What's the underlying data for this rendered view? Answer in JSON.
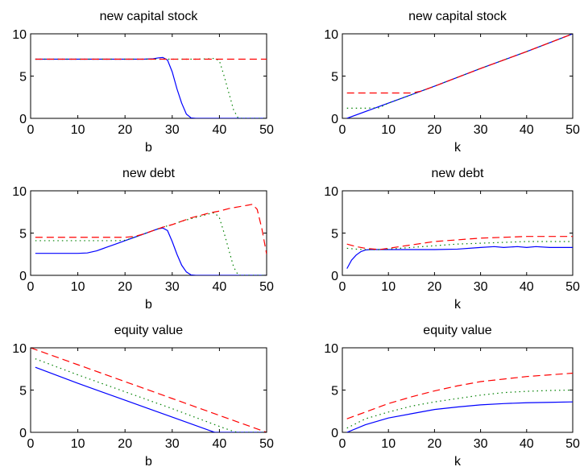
{
  "chart_data": [
    {
      "type": "line",
      "title": "new capital stock",
      "xlabel": "b",
      "ylabel": "",
      "xlim": [
        0,
        50
      ],
      "ylim": [
        0,
        10
      ],
      "xticks": [
        0,
        10,
        20,
        30,
        40,
        50
      ],
      "yticks": [
        0,
        5,
        10
      ],
      "series": [
        {
          "color": "#0000ff",
          "style": "solid",
          "x": [
            1,
            5,
            10,
            15,
            20,
            24,
            26,
            27,
            28,
            29,
            30,
            31,
            32,
            33,
            34,
            35,
            40,
            50
          ],
          "y": [
            7.0,
            7.0,
            7.0,
            7.0,
            7.0,
            7.0,
            7.05,
            7.15,
            7.2,
            6.9,
            5.5,
            3.5,
            1.8,
            0.5,
            0.05,
            0,
            0,
            0
          ]
        },
        {
          "color": "#008000",
          "style": "dotted",
          "x": [
            1,
            10,
            20,
            30,
            35,
            38,
            39,
            40,
            41,
            42,
            43,
            44,
            45,
            50
          ],
          "y": [
            7.0,
            7.0,
            7.0,
            7.0,
            7.0,
            7.05,
            7.1,
            6.8,
            5.0,
            3.0,
            1.0,
            0,
            0,
            0
          ]
        },
        {
          "color": "#ff0000",
          "style": "dashed",
          "x": [
            1,
            10,
            20,
            30,
            40,
            50
          ],
          "y": [
            7.0,
            7.0,
            7.0,
            7.0,
            7.0,
            7.0
          ]
        }
      ]
    },
    {
      "type": "line",
      "title": "new capital stock",
      "xlabel": "k",
      "ylabel": "",
      "xlim": [
        0,
        50
      ],
      "ylim": [
        0,
        10
      ],
      "xticks": [
        0,
        10,
        20,
        30,
        40,
        50
      ],
      "yticks": [
        0,
        5,
        10
      ],
      "series": [
        {
          "color": "#0000ff",
          "style": "solid",
          "x": [
            1,
            10,
            20,
            30,
            40,
            50
          ],
          "y": [
            0,
            1.8,
            3.8,
            5.9,
            7.9,
            10.0
          ]
        },
        {
          "color": "#008000",
          "style": "dotted",
          "x": [
            1,
            5,
            8,
            10,
            15,
            20,
            30,
            40,
            50
          ],
          "y": [
            1.2,
            1.2,
            1.25,
            1.8,
            2.8,
            3.8,
            5.9,
            7.9,
            10.0
          ]
        },
        {
          "color": "#ff0000",
          "style": "dashed",
          "x": [
            1,
            5,
            10,
            15,
            17,
            20,
            30,
            40,
            50
          ],
          "y": [
            3.0,
            3.0,
            3.0,
            3.0,
            3.2,
            3.8,
            5.9,
            7.9,
            10.0
          ]
        }
      ]
    },
    {
      "type": "line",
      "title": "new debt",
      "xlabel": "b",
      "ylabel": "",
      "xlim": [
        0,
        50
      ],
      "ylim": [
        0,
        10
      ],
      "xticks": [
        0,
        10,
        20,
        30,
        40,
        50
      ],
      "yticks": [
        0,
        5,
        10
      ],
      "series": [
        {
          "color": "#0000ff",
          "style": "solid",
          "x": [
            1,
            5,
            10,
            12,
            14,
            16,
            18,
            20,
            22,
            24,
            26,
            27,
            28,
            29,
            30,
            31,
            32,
            33,
            34,
            35,
            40,
            50
          ],
          "y": [
            2.6,
            2.6,
            2.6,
            2.65,
            2.9,
            3.3,
            3.7,
            4.1,
            4.5,
            4.9,
            5.3,
            5.5,
            5.6,
            5.3,
            4.0,
            2.5,
            1.2,
            0.4,
            0.05,
            0,
            0,
            0
          ]
        },
        {
          "color": "#008000",
          "style": "dotted",
          "x": [
            1,
            5,
            10,
            15,
            18,
            20,
            22,
            24,
            26,
            28,
            30,
            32,
            34,
            36,
            38,
            39,
            40,
            41,
            42,
            43,
            44,
            50
          ],
          "y": [
            4.1,
            4.1,
            4.1,
            4.1,
            4.1,
            4.15,
            4.5,
            4.9,
            5.3,
            5.7,
            6.0,
            6.4,
            6.7,
            7.0,
            7.3,
            7.4,
            6.8,
            5.0,
            3.0,
            1.0,
            0,
            0
          ]
        },
        {
          "color": "#ff0000",
          "style": "dashed",
          "x": [
            1,
            5,
            10,
            15,
            20,
            22,
            24,
            26,
            28,
            30,
            32,
            34,
            36,
            38,
            40,
            42,
            44,
            46,
            47,
            48,
            49,
            50
          ],
          "y": [
            4.5,
            4.5,
            4.5,
            4.5,
            4.5,
            4.6,
            4.9,
            5.3,
            5.7,
            6.0,
            6.4,
            6.8,
            7.1,
            7.4,
            7.6,
            7.9,
            8.1,
            8.3,
            8.4,
            7.8,
            5.5,
            2.5
          ]
        }
      ]
    },
    {
      "type": "line",
      "title": "new debt",
      "xlabel": "k",
      "ylabel": "",
      "xlim": [
        0,
        50
      ],
      "ylim": [
        0,
        10
      ],
      "xticks": [
        0,
        10,
        20,
        30,
        40,
        50
      ],
      "yticks": [
        0,
        5,
        10
      ],
      "series": [
        {
          "color": "#0000ff",
          "style": "solid",
          "x": [
            1,
            2,
            3,
            4,
            5,
            6,
            8,
            10,
            15,
            20,
            25,
            30,
            33,
            35,
            38,
            40,
            42,
            45,
            48,
            50
          ],
          "y": [
            0.8,
            1.8,
            2.4,
            2.8,
            3.0,
            3.05,
            3.05,
            3.05,
            3.05,
            3.05,
            3.1,
            3.3,
            3.4,
            3.3,
            3.4,
            3.3,
            3.4,
            3.3,
            3.3,
            3.3
          ]
        },
        {
          "color": "#008000",
          "style": "dotted",
          "x": [
            1,
            3,
            5,
            8,
            10,
            15,
            20,
            25,
            30,
            35,
            40,
            45,
            50
          ],
          "y": [
            3.2,
            3.1,
            3.05,
            3.05,
            3.1,
            3.3,
            3.5,
            3.7,
            3.8,
            3.9,
            4.0,
            4.0,
            4.0
          ]
        },
        {
          "color": "#ff0000",
          "style": "dashed",
          "x": [
            1,
            3,
            5,
            8,
            10,
            15,
            20,
            25,
            30,
            35,
            40,
            45,
            50
          ],
          "y": [
            3.7,
            3.4,
            3.2,
            3.05,
            3.2,
            3.6,
            4.0,
            4.2,
            4.4,
            4.5,
            4.6,
            4.6,
            4.6
          ]
        }
      ]
    },
    {
      "type": "line",
      "title": "equity value",
      "xlabel": "b",
      "ylabel": "",
      "xlim": [
        0,
        50
      ],
      "ylim": [
        0,
        10
      ],
      "xticks": [
        0,
        10,
        20,
        30,
        40,
        50
      ],
      "yticks": [
        0,
        5,
        10
      ],
      "series": [
        {
          "color": "#0000ff",
          "style": "solid",
          "x": [
            1,
            10,
            20,
            30,
            38,
            39,
            40,
            50
          ],
          "y": [
            7.7,
            5.8,
            3.8,
            1.8,
            0.2,
            0,
            0,
            0
          ]
        },
        {
          "color": "#008000",
          "style": "dotted",
          "x": [
            1,
            10,
            20,
            30,
            40,
            43,
            44,
            50
          ],
          "y": [
            8.7,
            6.8,
            4.8,
            2.8,
            0.7,
            0.1,
            0,
            0
          ]
        },
        {
          "color": "#ff0000",
          "style": "dashed",
          "x": [
            0,
            10,
            20,
            30,
            40,
            49,
            50
          ],
          "y": [
            10.0,
            8.0,
            6.0,
            4.0,
            2.0,
            0.2,
            0
          ]
        }
      ]
    },
    {
      "type": "line",
      "title": "equity value",
      "xlabel": "k",
      "ylabel": "",
      "xlim": [
        0,
        50
      ],
      "ylim": [
        0,
        10
      ],
      "xticks": [
        0,
        10,
        20,
        30,
        40,
        50
      ],
      "yticks": [
        0,
        5,
        10
      ],
      "series": [
        {
          "color": "#0000ff",
          "style": "solid",
          "x": [
            1,
            5,
            10,
            15,
            20,
            25,
            30,
            35,
            40,
            45,
            50
          ],
          "y": [
            0,
            0.9,
            1.7,
            2.2,
            2.7,
            3.0,
            3.25,
            3.4,
            3.5,
            3.55,
            3.6
          ]
        },
        {
          "color": "#008000",
          "style": "dotted",
          "x": [
            1,
            5,
            10,
            15,
            20,
            25,
            30,
            35,
            40,
            45,
            50
          ],
          "y": [
            0.5,
            1.6,
            2.4,
            3.1,
            3.6,
            4.0,
            4.4,
            4.7,
            4.85,
            4.95,
            5.0
          ]
        },
        {
          "color": "#ff0000",
          "style": "dashed",
          "x": [
            1,
            5,
            10,
            15,
            20,
            25,
            30,
            35,
            40,
            45,
            50
          ],
          "y": [
            1.6,
            2.4,
            3.4,
            4.2,
            4.9,
            5.5,
            6.0,
            6.3,
            6.6,
            6.8,
            7.0
          ]
        }
      ]
    }
  ]
}
